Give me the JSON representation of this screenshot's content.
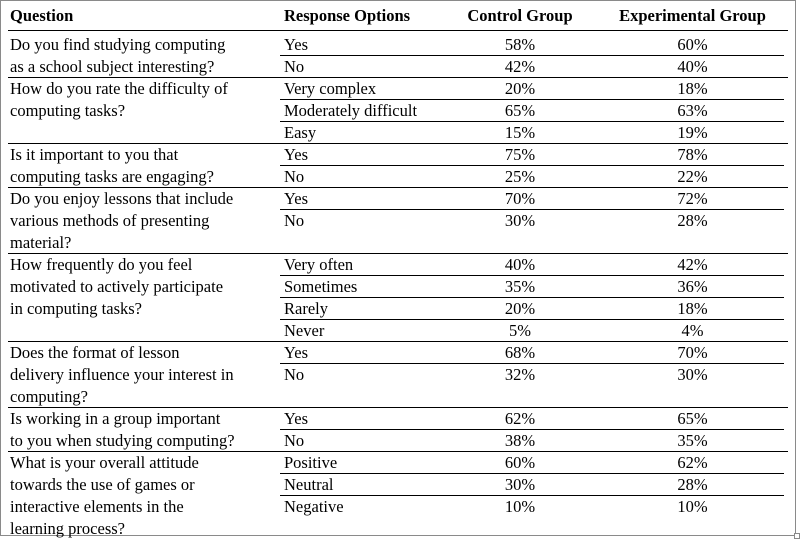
{
  "headers": {
    "question": "Question",
    "options": "Response Options",
    "control": "Control Group",
    "experimental": "Experimental Group"
  },
  "rows": [
    {
      "question": [
        "Do you find studying computing",
        "as a school subject interesting?"
      ],
      "options": [
        {
          "label": "Yes",
          "control": "58%",
          "experimental": "60%"
        },
        {
          "label": "No",
          "control": "42%",
          "experimental": "40%"
        }
      ]
    },
    {
      "question": [
        "How do you rate the difficulty of",
        "computing tasks?"
      ],
      "options": [
        {
          "label": "Very complex",
          "control": "20%",
          "experimental": "18%"
        },
        {
          "label": "Moderately difficult",
          "control": "65%",
          "experimental": "63%"
        },
        {
          "label": "Easy",
          "control": "15%",
          "experimental": "19%"
        }
      ]
    },
    {
      "question": [
        "Is it important to you that",
        "computing tasks are engaging?"
      ],
      "options": [
        {
          "label": "Yes",
          "control": "75%",
          "experimental": "78%"
        },
        {
          "label": "No",
          "control": "25%",
          "experimental": "22%"
        }
      ]
    },
    {
      "question": [
        "Do you enjoy lessons that include",
        "various methods of presenting",
        "material?"
      ],
      "options": [
        {
          "label": "Yes",
          "control": "70%",
          "experimental": "72%"
        },
        {
          "label": "No",
          "control": "30%",
          "experimental": "28%"
        }
      ]
    },
    {
      "question": [
        "How frequently do you feel",
        "motivated to actively participate",
        "in computing tasks?"
      ],
      "options": [
        {
          "label": "Very often",
          "control": "40%",
          "experimental": "42%"
        },
        {
          "label": "Sometimes",
          "control": "35%",
          "experimental": "36%"
        },
        {
          "label": "Rarely",
          "control": "20%",
          "experimental": "18%"
        },
        {
          "label": "Never",
          "control": "5%",
          "experimental": "4%"
        }
      ]
    },
    {
      "question": [
        "Does the format of lesson",
        "delivery influence your interest in",
        "computing?"
      ],
      "options": [
        {
          "label": "Yes",
          "control": "68%",
          "experimental": "70%"
        },
        {
          "label": "No",
          "control": "32%",
          "experimental": "30%"
        }
      ]
    },
    {
      "question": [
        "Is working in a group important",
        "to you when studying computing?"
      ],
      "options": [
        {
          "label": "Yes",
          "control": "62%",
          "experimental": "65%"
        },
        {
          "label": "No",
          "control": "38%",
          "experimental": "35%"
        }
      ]
    },
    {
      "question": [
        "What is your overall attitude",
        "towards the use of games or",
        "interactive elements in the",
        "learning process?"
      ],
      "options": [
        {
          "label": "Positive",
          "control": "60%",
          "experimental": "62%"
        },
        {
          "label": "Neutral",
          "control": "30%",
          "experimental": "28%"
        },
        {
          "label": "Negative",
          "control": "10%",
          "experimental": "10%"
        }
      ]
    }
  ]
}
